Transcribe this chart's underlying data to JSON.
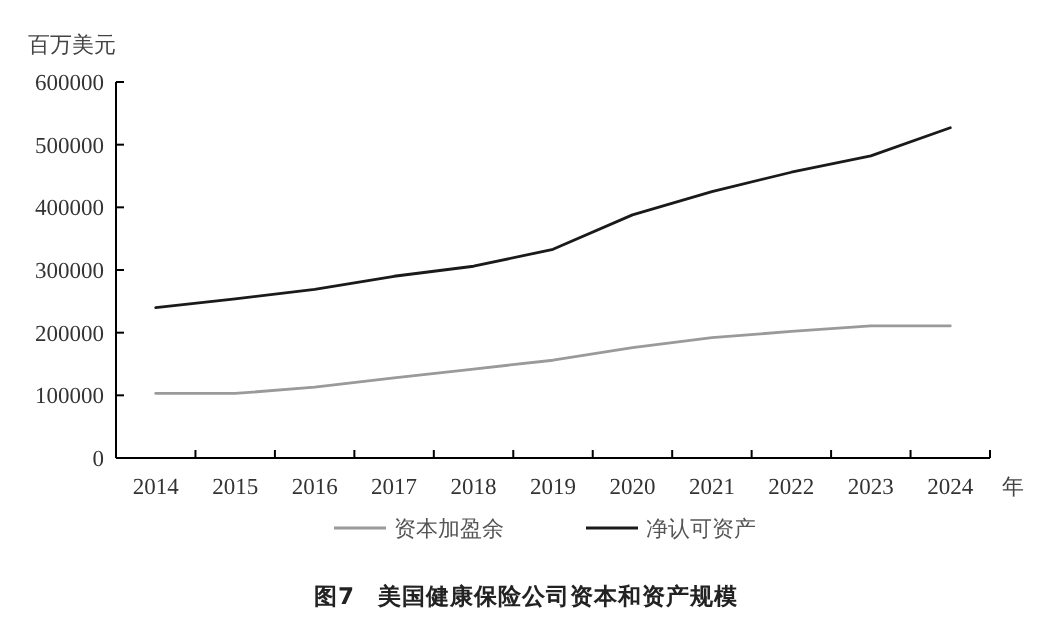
{
  "chart_data": {
    "type": "line",
    "title": "图7　美国健康保险公司资本和资产规模",
    "ylabel": "百万美元",
    "xlabel": "年",
    "categories": [
      "2014",
      "2015",
      "2016",
      "2017",
      "2018",
      "2019",
      "2020",
      "2021",
      "2022",
      "2023",
      "2024"
    ],
    "series": [
      {
        "name": "资本加盈余",
        "color": "#9a9a9a",
        "values": [
          103000,
          103000,
          113000,
          128000,
          142000,
          156000,
          176000,
          192000,
          202000,
          211000,
          211000
        ]
      },
      {
        "name": "净认可资产",
        "color": "#1a1a1a",
        "values": [
          240000,
          254000,
          269000,
          290000,
          306000,
          333000,
          388000,
          425000,
          456000,
          482000,
          527000
        ]
      }
    ],
    "ylim": [
      0,
      600000
    ],
    "yticks": [
      0,
      100000,
      200000,
      300000,
      400000,
      500000,
      600000
    ],
    "legend": "bottom",
    "grid": false,
    "marker": "none",
    "line_style": "solid"
  }
}
